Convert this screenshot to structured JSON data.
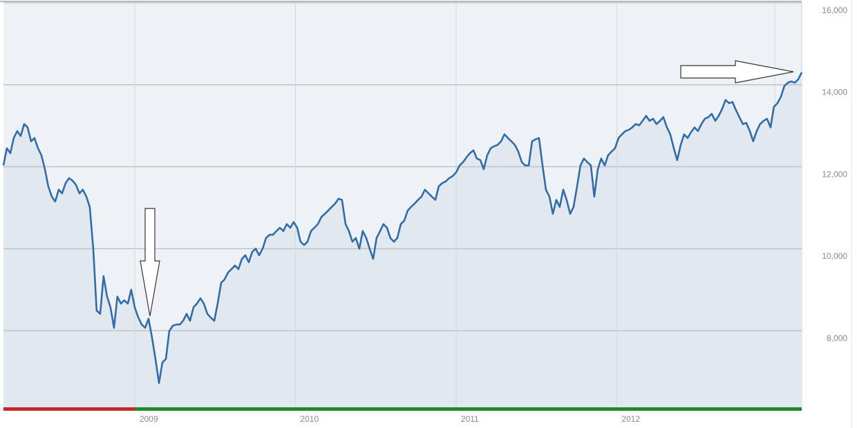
{
  "chart_data": {
    "type": "area",
    "color": "#2f6ca9",
    "fill_color": "#e2e8f0",
    "grid": true,
    "xlim": [
      2008.183,
      2013.151
    ],
    "xticks": [
      2009,
      2010,
      2011,
      2012
    ],
    "ylim": [
      6130,
      16000
    ],
    "yticks": [
      {
        "value": 8000,
        "label": "8,000"
      },
      {
        "value": 10000,
        "label": "10,000"
      },
      {
        "value": 12000,
        "label": "12,000"
      },
      {
        "value": 14000,
        "label": "14,000"
      },
      {
        "value": 16000,
        "label": "16,000"
      }
    ],
    "x": [
      2008.183,
      2008.204,
      2008.226,
      2008.247,
      2008.269,
      2008.29,
      2008.312,
      2008.333,
      2008.355,
      2008.376,
      2008.398,
      2008.419,
      2008.441,
      2008.462,
      2008.484,
      2008.505,
      2008.527,
      2008.548,
      2008.57,
      2008.591,
      2008.613,
      2008.634,
      2008.656,
      2008.677,
      2008.699,
      2008.72,
      2008.742,
      2008.763,
      2008.785,
      2008.806,
      2008.828,
      2008.849,
      2008.871,
      2008.892,
      2008.914,
      2008.935,
      2008.957,
      2008.978,
      2009.0,
      2009.022,
      2009.043,
      2009.065,
      2009.086,
      2009.108,
      2009.129,
      2009.151,
      2009.172,
      2009.194,
      2009.215,
      2009.237,
      2009.258,
      2009.28,
      2009.301,
      2009.323,
      2009.344,
      2009.366,
      2009.387,
      2009.409,
      2009.43,
      2009.452,
      2009.473,
      2009.495,
      2009.516,
      2009.538,
      2009.559,
      2009.581,
      2009.602,
      2009.624,
      2009.645,
      2009.667,
      2009.688,
      2009.71,
      2009.731,
      2009.753,
      2009.774,
      2009.796,
      2009.817,
      2009.839,
      2009.86,
      2009.882,
      2009.903,
      2009.925,
      2009.946,
      2009.968,
      2009.989,
      2010.011,
      2010.032,
      2010.054,
      2010.075,
      2010.097,
      2010.118,
      2010.14,
      2010.161,
      2010.183,
      2010.204,
      2010.226,
      2010.247,
      2010.269,
      2010.29,
      2010.312,
      2010.333,
      2010.355,
      2010.376,
      2010.398,
      2010.419,
      2010.441,
      2010.462,
      2010.484,
      2010.505,
      2010.527,
      2010.548,
      2010.57,
      2010.591,
      2010.613,
      2010.634,
      2010.656,
      2010.677,
      2010.699,
      2010.72,
      2010.742,
      2010.763,
      2010.785,
      2010.806,
      2010.828,
      2010.849,
      2010.871,
      2010.892,
      2010.914,
      2010.935,
      2010.957,
      2010.978,
      2011.0,
      2011.022,
      2011.043,
      2011.065,
      2011.086,
      2011.108,
      2011.129,
      2011.151,
      2011.172,
      2011.194,
      2011.215,
      2011.237,
      2011.258,
      2011.28,
      2011.301,
      2011.323,
      2011.344,
      2011.366,
      2011.387,
      2011.409,
      2011.43,
      2011.452,
      2011.473,
      2011.495,
      2011.516,
      2011.538,
      2011.559,
      2011.581,
      2011.602,
      2011.624,
      2011.645,
      2011.667,
      2011.688,
      2011.71,
      2011.731,
      2011.753,
      2011.774,
      2011.796,
      2011.817,
      2011.839,
      2011.86,
      2011.882,
      2011.903,
      2011.925,
      2011.946,
      2011.968,
      2011.989,
      2012.011,
      2012.032,
      2012.054,
      2012.075,
      2012.097,
      2012.118,
      2012.14,
      2012.161,
      2012.183,
      2012.204,
      2012.226,
      2012.247,
      2012.269,
      2012.29,
      2012.312,
      2012.333,
      2012.355,
      2012.376,
      2012.398,
      2012.419,
      2012.441,
      2012.462,
      2012.484,
      2012.505,
      2012.527,
      2012.548,
      2012.57,
      2012.591,
      2012.613,
      2012.634,
      2012.656,
      2012.677,
      2012.699,
      2012.72,
      2012.742,
      2012.763,
      2012.785,
      2012.806,
      2012.828,
      2012.849,
      2012.871,
      2012.892,
      2012.914,
      2012.935,
      2012.957,
      2012.978,
      2013.0,
      2013.022,
      2013.043,
      2013.065,
      2013.086,
      2013.108,
      2013.129,
      2013.151
    ],
    "values": [
      12030,
      12450,
      12330,
      12700,
      12870,
      12750,
      13040,
      12960,
      12620,
      12700,
      12450,
      12280,
      11940,
      11520,
      11270,
      11150,
      11440,
      11350,
      11600,
      11720,
      11660,
      11560,
      11350,
      11440,
      11270,
      11020,
      10000,
      8490,
      8410,
      9330,
      8830,
      8570,
      8070,
      8830,
      8660,
      8740,
      8660,
      9000,
      8570,
      8320,
      8150,
      8070,
      8290,
      7820,
      7310,
      6720,
      7220,
      7310,
      7990,
      8120,
      8150,
      8150,
      8240,
      8410,
      8240,
      8570,
      8660,
      8790,
      8660,
      8410,
      8320,
      8240,
      8660,
      9170,
      9250,
      9420,
      9500,
      9590,
      9500,
      9750,
      9840,
      9670,
      9920,
      10000,
      9840,
      10000,
      10260,
      10340,
      10340,
      10430,
      10510,
      10430,
      10600,
      10510,
      10650,
      10510,
      10170,
      10090,
      10170,
      10430,
      10510,
      10600,
      10770,
      10850,
      10930,
      11020,
      11100,
      11220,
      11190,
      10600,
      10430,
      10170,
      10260,
      10000,
      10430,
      10260,
      10000,
      9750,
      10260,
      10430,
      10600,
      10510,
      10260,
      10170,
      10260,
      10600,
      10680,
      10930,
      11020,
      11100,
      11190,
      11270,
      11440,
      11350,
      11270,
      11190,
      11520,
      11600,
      11640,
      11720,
      11770,
      11860,
      12030,
      12110,
      12230,
      12330,
      12400,
      12200,
      12160,
      11940,
      12280,
      12450,
      12500,
      12530,
      12620,
      12790,
      12700,
      12620,
      12530,
      12370,
      12110,
      12030,
      12030,
      12620,
      12670,
      12700,
      12030,
      11440,
      11270,
      10850,
      11190,
      11020,
      11440,
      11190,
      10850,
      11020,
      11520,
      12030,
      12200,
      12110,
      12030,
      11270,
      11940,
      12200,
      12030,
      12280,
      12370,
      12450,
      12700,
      12790,
      12870,
      12900,
      12960,
      13040,
      13010,
      13120,
      13240,
      13120,
      13170,
      13040,
      13120,
      13210,
      12960,
      12790,
      12450,
      12160,
      12530,
      12790,
      12700,
      12840,
      12960,
      12870,
      13040,
      13170,
      13210,
      13290,
      13120,
      13240,
      13410,
      13630,
      13550,
      13580,
      13380,
      13210,
      13040,
      13070,
      12870,
      12620,
      12870,
      13040,
      13120,
      13170,
      12960,
      13460,
      13550,
      13710,
      13970,
      14050,
      14080,
      14050,
      14130,
      14300
    ]
  }
}
